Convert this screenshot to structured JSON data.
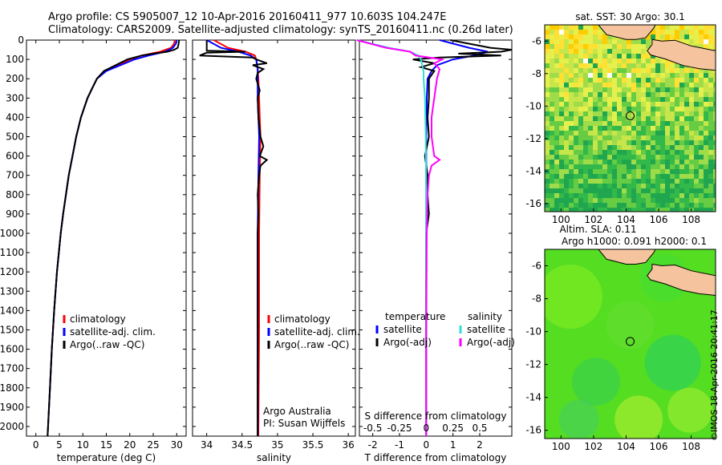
{
  "header": {
    "title_line1": "Argo profile: CS 5905007_12 10-Apr-2016 20160411_977 10.603S 104.247E",
    "title_line2": "Climatology: CARS2009. Satellite-adjusted climatology: synTS_20160411.nc (0.26d later)"
  },
  "side_stamp": "©IMOS 18-Apr-2016 20:41:17",
  "colors": {
    "climatology": "#ff0000",
    "satellite_adj": "#0000ff",
    "argo": "#000000",
    "sat_salinity": "#33dddd",
    "argo_salinity_diff": "#ff00ff",
    "land": "#f5c49e"
  },
  "depth_ticks": [
    0,
    100,
    200,
    300,
    400,
    500,
    600,
    700,
    800,
    900,
    1000,
    1100,
    1200,
    1300,
    1400,
    1500,
    1600,
    1700,
    1800,
    1900,
    2000
  ],
  "chart_data": [
    {
      "type": "line",
      "panel": "temperature",
      "xlabel": "temperature (deg C)",
      "xlim": [
        -2,
        32
      ],
      "xticks": [
        0,
        5,
        10,
        15,
        20,
        25,
        30
      ],
      "ylim": [
        0,
        2050
      ],
      "y_reversed": true,
      "legend": [
        "climatology",
        "satellite-adj. clim.",
        "Argo(..raw -QC)"
      ],
      "series": [
        {
          "name": "climatology",
          "color": "#ff0000",
          "depth": [
            0,
            20,
            40,
            60,
            80,
            100,
            130,
            160,
            200,
            250,
            300,
            400,
            500,
            600,
            700,
            800,
            900,
            1000,
            1200,
            1400,
            1600,
            1800,
            2000,
            2050
          ],
          "values": [
            29.6,
            29.4,
            28.8,
            26.5,
            22.5,
            20,
            17.5,
            14.5,
            13,
            12,
            11,
            9.6,
            8.6,
            7.8,
            7,
            6.4,
            5.8,
            5.3,
            4.5,
            3.9,
            3.4,
            3,
            2.6,
            2.5
          ]
        },
        {
          "name": "satellite-adj. clim.",
          "color": "#0000ff",
          "depth": [
            0,
            20,
            40,
            60,
            80,
            100,
            130,
            160,
            200,
            250,
            300,
            400,
            500,
            600,
            700,
            800,
            900,
            1000,
            1200,
            1400,
            1600,
            1800,
            2000,
            2050
          ],
          "values": [
            30,
            29.8,
            29.2,
            27.5,
            24,
            21,
            18,
            15,
            13,
            12,
            11,
            9.6,
            8.6,
            7.8,
            7,
            6.4,
            5.8,
            5.3,
            4.5,
            3.9,
            3.4,
            3,
            2.6,
            2.5
          ]
        },
        {
          "name": "Argo(..raw -QC)",
          "color": "#000000",
          "depth": [
            0,
            20,
            40,
            50,
            60,
            70,
            80,
            100,
            130,
            160,
            200,
            250,
            300,
            400,
            500,
            600,
            700,
            800,
            900,
            1000,
            1200,
            1400,
            1600,
            1800,
            2000,
            2050
          ],
          "values": [
            30.5,
            30.4,
            30.2,
            29.5,
            28,
            25,
            22.5,
            19.5,
            17,
            14.5,
            13,
            12,
            11,
            9.6,
            8.6,
            7.8,
            7,
            6.4,
            5.8,
            5.3,
            4.5,
            3.9,
            3.4,
            3,
            2.6,
            2.5
          ]
        }
      ]
    },
    {
      "type": "line",
      "panel": "salinity",
      "xlabel": "salinity",
      "xlim": [
        33.8,
        36.1
      ],
      "xticks": [
        34,
        34.5,
        35,
        35.5,
        36
      ],
      "ylim": [
        0,
        2050
      ],
      "y_reversed": true,
      "legend": [
        "climatology",
        "satellite-adj. clim.",
        "Argo(..raw -QC)"
      ],
      "annotation": [
        "Argo Australia",
        "PI: Susan Wijffels"
      ],
      "series": [
        {
          "name": "climatology",
          "color": "#ff0000",
          "depth": [
            0,
            40,
            60,
            80,
            100,
            150,
            200,
            300,
            400,
            500,
            700,
            1000,
            1500,
            2000,
            2050
          ],
          "values": [
            34.1,
            34.3,
            34.55,
            34.68,
            34.7,
            34.72,
            34.73,
            34.74,
            34.75,
            34.76,
            34.75,
            34.74,
            34.74,
            34.73,
            34.73
          ]
        },
        {
          "name": "satellite-adj. clim.",
          "color": "#0000ff",
          "depth": [
            0,
            40,
            60,
            80,
            100,
            150,
            200,
            300,
            400,
            500,
            700,
            1000,
            1500,
            2000,
            2050
          ],
          "values": [
            34.0,
            34.2,
            34.45,
            34.62,
            34.7,
            34.72,
            34.72,
            34.72,
            34.73,
            34.74,
            34.73,
            34.72,
            34.72,
            34.72,
            34.72
          ]
        },
        {
          "name": "Argo(..raw -QC)",
          "color": "#000000",
          "depth": [
            0,
            55,
            60,
            65,
            80,
            90,
            100,
            120,
            130,
            150,
            170,
            200,
            260,
            300,
            400,
            500,
            550,
            600,
            620,
            650,
            700,
            800,
            900,
            1000,
            1200,
            1500,
            2000,
            2050
          ],
          "values": [
            34.0,
            34.0,
            34.55,
            34.0,
            33.9,
            34.65,
            34.7,
            34.85,
            34.65,
            34.8,
            34.72,
            34.7,
            34.75,
            34.72,
            34.73,
            34.76,
            34.8,
            34.75,
            34.85,
            34.76,
            34.74,
            34.72,
            34.73,
            34.72,
            34.72,
            34.72,
            34.72,
            34.72
          ]
        }
      ]
    },
    {
      "type": "line",
      "panel": "differences",
      "xlabel": "T difference from climatology",
      "xlabel_top": "S difference from climatology",
      "xlim": [
        -2.5,
        3.2
      ],
      "xticks": [
        -2,
        -1,
        0,
        1,
        2
      ],
      "xticks_top": [
        "-0.5",
        "-0.25",
        "0",
        "0.25",
        "0.5"
      ],
      "ylim": [
        0,
        2050
      ],
      "y_reversed": true,
      "legend_temperature": [
        "temperature",
        "satellite",
        "Argo(-adj)"
      ],
      "legend_salinity": [
        "salinity",
        "satellite",
        "Argo(-adj)"
      ],
      "series": [
        {
          "name": "satellite",
          "color": "#0000ff",
          "depth": [
            0,
            40,
            60,
            80,
            100,
            130,
            160,
            200,
            300,
            500,
            800,
            1200,
            1600,
            2050
          ],
          "values": [
            0.5,
            1.6,
            2.3,
            1.8,
            1.0,
            0.4,
            0.2,
            0.05,
            0.02,
            0,
            0,
            0,
            0,
            0
          ]
        },
        {
          "name": "Argo(-adj)",
          "color": "#000000",
          "depth": [
            0,
            40,
            50,
            60,
            70,
            80,
            90,
            100,
            120,
            140,
            160,
            200,
            300,
            400,
            500,
            600,
            700,
            800,
            900,
            1000,
            1200,
            1500,
            1800,
            2050
          ],
          "values": [
            0.9,
            2.4,
            3.2,
            2.8,
            1.2,
            2.8,
            0.5,
            -0.5,
            0.3,
            -0.2,
            0.3,
            0.1,
            0.1,
            0.05,
            0.1,
            -0.05,
            0.05,
            0.05,
            0.1,
            0,
            0,
            0,
            0,
            0
          ]
        },
        {
          "name": "satellite",
          "color": "#33dddd",
          "depth": [
            0,
            40,
            60,
            80,
            100,
            130,
            160,
            200,
            300,
            500,
            800,
            1200,
            1600,
            2050
          ],
          "values": [
            -2.6,
            -1.4,
            -0.6,
            -0.3,
            -0.2,
            -0.15,
            -0.1,
            -0.1,
            -0.05,
            -0.02,
            0,
            0,
            0,
            0
          ]
        },
        {
          "name": "Argo(-adj)",
          "color": "#ff00ff",
          "depth": [
            0,
            40,
            60,
            80,
            100,
            120,
            150,
            200,
            300,
            400,
            500,
            600,
            620,
            650,
            700,
            800,
            1000,
            1500,
            2050
          ],
          "values": [
            -2.6,
            -1.5,
            -0.6,
            -0.4,
            0.6,
            0.3,
            0.5,
            0.4,
            0.3,
            0.2,
            0.2,
            0.3,
            0.5,
            0.2,
            0.1,
            0.05,
            0.02,
            0,
            0
          ]
        }
      ]
    },
    {
      "type": "heatmap",
      "panel": "sst-map",
      "title": "sat. SST: 30 Argo: 30.1",
      "xlim": [
        99,
        109.5
      ],
      "ylim": [
        -16.5,
        -5
      ],
      "xticks": [
        100,
        102,
        104,
        106,
        108
      ],
      "yticks": [
        -6,
        -8,
        -10,
        -12,
        -14,
        -16
      ],
      "argo_position": [
        104.25,
        -10.6
      ]
    },
    {
      "type": "heatmap",
      "panel": "sla-map",
      "title": "Altim. SLA: 0.11",
      "subtitle": "Argo h1000: 0.091 h2000: 0.1",
      "xlim": [
        99,
        109.5
      ],
      "ylim": [
        -16.5,
        -5
      ],
      "xticks": [
        100,
        102,
        104,
        106,
        108
      ],
      "yticks": [
        -6,
        -8,
        -10,
        -12,
        -14,
        -16
      ],
      "argo_position": [
        104.25,
        -10.6
      ]
    }
  ]
}
